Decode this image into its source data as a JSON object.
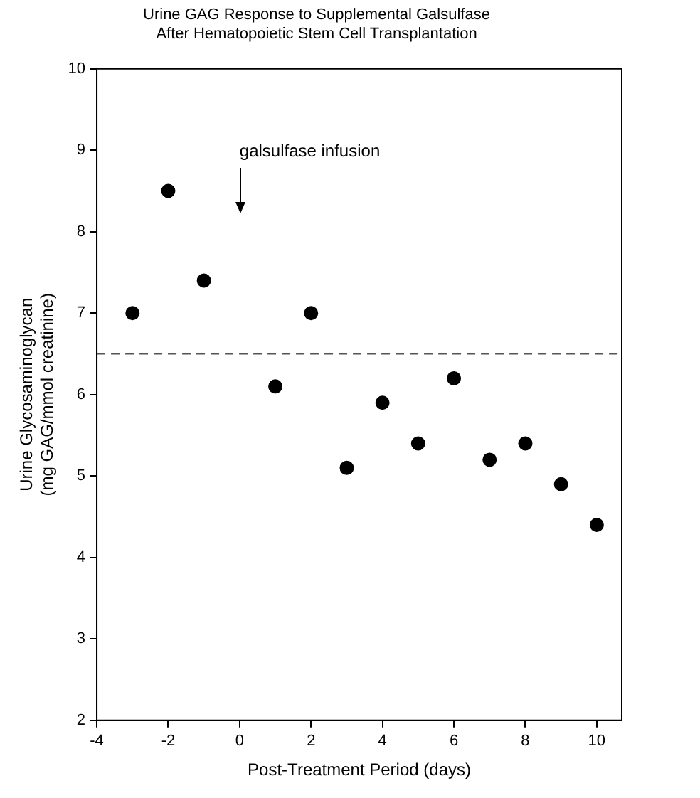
{
  "chart_data": {
    "type": "scatter",
    "title": "Urine GAG Response to Supplemental Galsulfase\nAfter Hematopoietic Stem Cell Transplantation",
    "xlabel": "Post-Treatment Period (days)",
    "ylabel": "Urine Glycosaminoglycan\n(mg GAG/mmol creatinine)",
    "x": [
      -3,
      -2,
      -1,
      1,
      2,
      3,
      4,
      5,
      6,
      7,
      8,
      9,
      10
    ],
    "series": [
      {
        "color": "#000000",
        "values": [
          7.0,
          8.5,
          7.4,
          6.1,
          7.0,
          5.1,
          5.9,
          5.4,
          6.2,
          5.2,
          5.4,
          4.9,
          4.4
        ]
      }
    ],
    "xlim": [
      -4,
      10.7
    ],
    "xticks": [
      -4,
      -2,
      0,
      2,
      4,
      6,
      8,
      10
    ],
    "ylim": [
      2,
      10
    ],
    "yticks": [
      2,
      3,
      4,
      5,
      6,
      7,
      8,
      9,
      10
    ],
    "ref_lines": [
      {
        "axis": "y",
        "value": 6.5,
        "color": "#555555",
        "line_style": "dashed"
      }
    ],
    "annotations": [
      "galsulfase infusion"
    ],
    "marker": "circle",
    "grid": false,
    "legend": false
  }
}
